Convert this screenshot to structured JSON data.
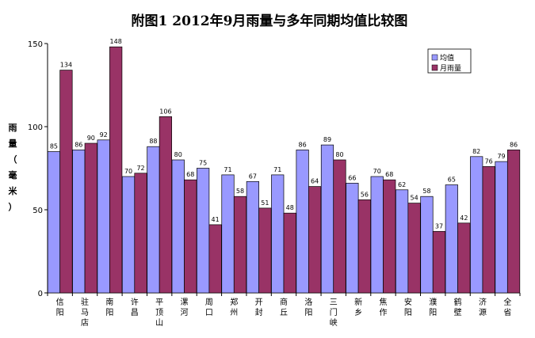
{
  "chart_data": {
    "type": "bar",
    "title": "附图1      2012年9月雨量与多年同期均值比较图",
    "ylabel": "雨量（毫米）",
    "ylim": [
      0,
      150
    ],
    "yticks": [
      0,
      50,
      100,
      150
    ],
    "grid": false,
    "legend_position": "top-right",
    "categories": [
      "信阳",
      "驻马店",
      "南阳",
      "许昌",
      "平顶山",
      "漯河",
      "周口",
      "郑州",
      "开封",
      "商丘",
      "洛阳",
      "三门峡",
      "新乡",
      "焦作",
      "安阳",
      "濮阳",
      "鹤壁",
      "济源",
      "全省"
    ],
    "series": [
      {
        "name": "均值",
        "color": "#9999FF",
        "values": [
          85,
          86,
          92,
          70,
          88,
          80,
          75,
          71,
          67,
          71,
          86,
          89,
          66,
          70,
          62,
          58,
          65,
          82,
          79
        ]
      },
      {
        "name": "月雨量",
        "color": "#993366",
        "values": [
          134,
          90,
          148,
          72,
          106,
          68,
          41,
          58,
          51,
          48,
          64,
          80,
          56,
          68,
          54,
          37,
          42,
          76,
          86
        ]
      }
    ]
  }
}
